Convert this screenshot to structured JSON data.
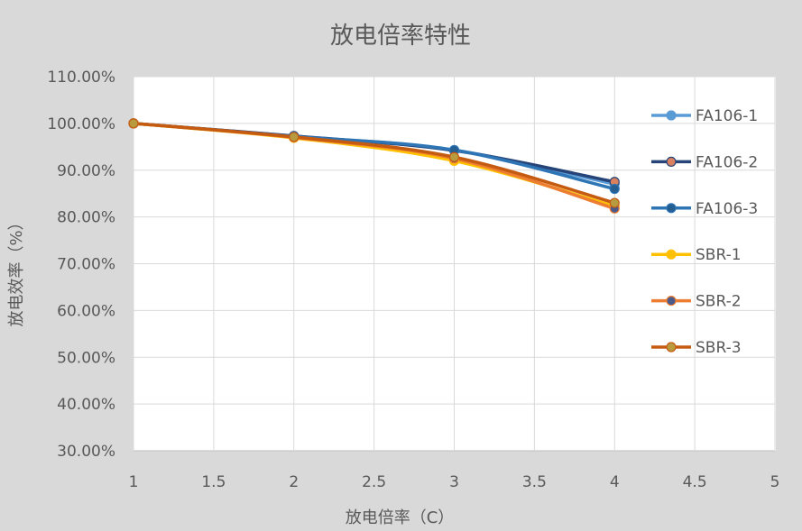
{
  "chart_data": {
    "type": "line",
    "title": "放电倍率特性",
    "xlabel": "放电倍率（C）",
    "ylabel": "放电效率（%）",
    "x": [
      1,
      2,
      3,
      4
    ],
    "xlim": [
      1,
      5
    ],
    "ylim": [
      30,
      110
    ],
    "xtick_labels": [
      "1",
      "1.5",
      "2",
      "2.5",
      "3",
      "3.5",
      "4",
      "4.5",
      "5"
    ],
    "ytick_labels": [
      "30.00%",
      "40.00%",
      "50.00%",
      "60.00%",
      "70.00%",
      "80.00%",
      "90.00%",
      "100.00%",
      "110.00%"
    ],
    "grid": true,
    "legend": "right",
    "series": [
      {
        "name": "FA106-1",
        "values": [
          100,
          97.3,
          94.3,
          87.0
        ],
        "color": "#5B9BD5",
        "marker_color": "#5B9BD5"
      },
      {
        "name": "FA106-2",
        "values": [
          100,
          97.3,
          94.2,
          87.5
        ],
        "color": "#264478",
        "marker_color": "#D9805F"
      },
      {
        "name": "FA106-3",
        "values": [
          100,
          97.2,
          94.3,
          86.0
        ],
        "color": "#2E75B6",
        "marker_color": "#255E91"
      },
      {
        "name": "SBR-1",
        "values": [
          100,
          96.9,
          92.0,
          82.3
        ],
        "color": "#FFC000",
        "marker_color": "#FFC000"
      },
      {
        "name": "SBR-2",
        "values": [
          100,
          97.0,
          92.5,
          81.8
        ],
        "color": "#ED7D31",
        "marker_color": "#4A5A8A"
      },
      {
        "name": "SBR-3",
        "values": [
          100,
          97.1,
          92.8,
          83.0
        ],
        "color": "#C55A11",
        "marker_color": "#B89B3E"
      }
    ]
  }
}
